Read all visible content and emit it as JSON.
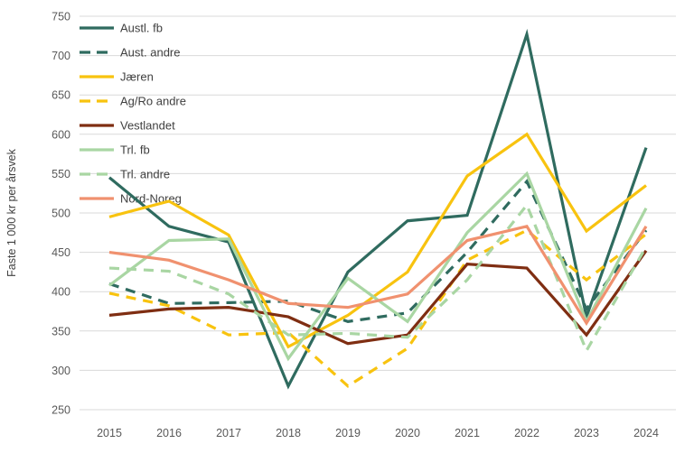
{
  "chart_data": {
    "type": "line",
    "title": "",
    "xlabel": "",
    "ylabel": "Faste 1 000 kr per årsvek",
    "categories": [
      "2015",
      "2016",
      "2017",
      "2018",
      "2019",
      "2020",
      "2021",
      "2022",
      "2023",
      "2024"
    ],
    "ylim": [
      250,
      750
    ],
    "ytick_step": 50,
    "grid": true,
    "legend_position": "top-left-inside",
    "series": [
      {
        "name": "Austl. fb",
        "color": "#2F6B5F",
        "dash": false,
        "values": [
          545,
          483,
          463,
          280,
          425,
          490,
          497,
          727,
          368,
          583
        ]
      },
      {
        "name": "Aust. andre",
        "color": "#2F6B5F",
        "dash": true,
        "values": [
          410,
          385,
          386,
          388,
          362,
          373,
          450,
          540,
          378,
          478
        ]
      },
      {
        "name": "Jæren",
        "color": "#F8C30F",
        "dash": false,
        "values": [
          495,
          515,
          472,
          330,
          370,
          425,
          547,
          600,
          477,
          535
        ]
      },
      {
        "name": "Ag/Ro andre",
        "color": "#F8C30F",
        "dash": true,
        "values": [
          398,
          382,
          345,
          348,
          280,
          328,
          440,
          478,
          415,
          473
        ]
      },
      {
        "name": "Vestlandet",
        "color": "#7F2E12",
        "dash": false,
        "values": [
          370,
          378,
          380,
          368,
          334,
          345,
          435,
          430,
          345,
          452
        ]
      },
      {
        "name": "Trl. fb",
        "color": "#A9D6A3",
        "dash": false,
        "values": [
          408,
          465,
          467,
          315,
          417,
          362,
          475,
          550,
          362,
          506
        ]
      },
      {
        "name": "Trl. andre",
        "color": "#A9D6A3",
        "dash": true,
        "values": [
          430,
          426,
          397,
          345,
          347,
          342,
          415,
          510,
          325,
          457
        ]
      },
      {
        "name": "Nord-Noreg",
        "color": "#F0916F",
        "dash": false,
        "values": [
          450,
          440,
          415,
          385,
          380,
          397,
          465,
          483,
          360,
          483
        ]
      }
    ]
  },
  "colors": {
    "background": "#ffffff",
    "gridline": "#d9d9d9",
    "tick_text": "#595959",
    "label_text": "#404040"
  }
}
